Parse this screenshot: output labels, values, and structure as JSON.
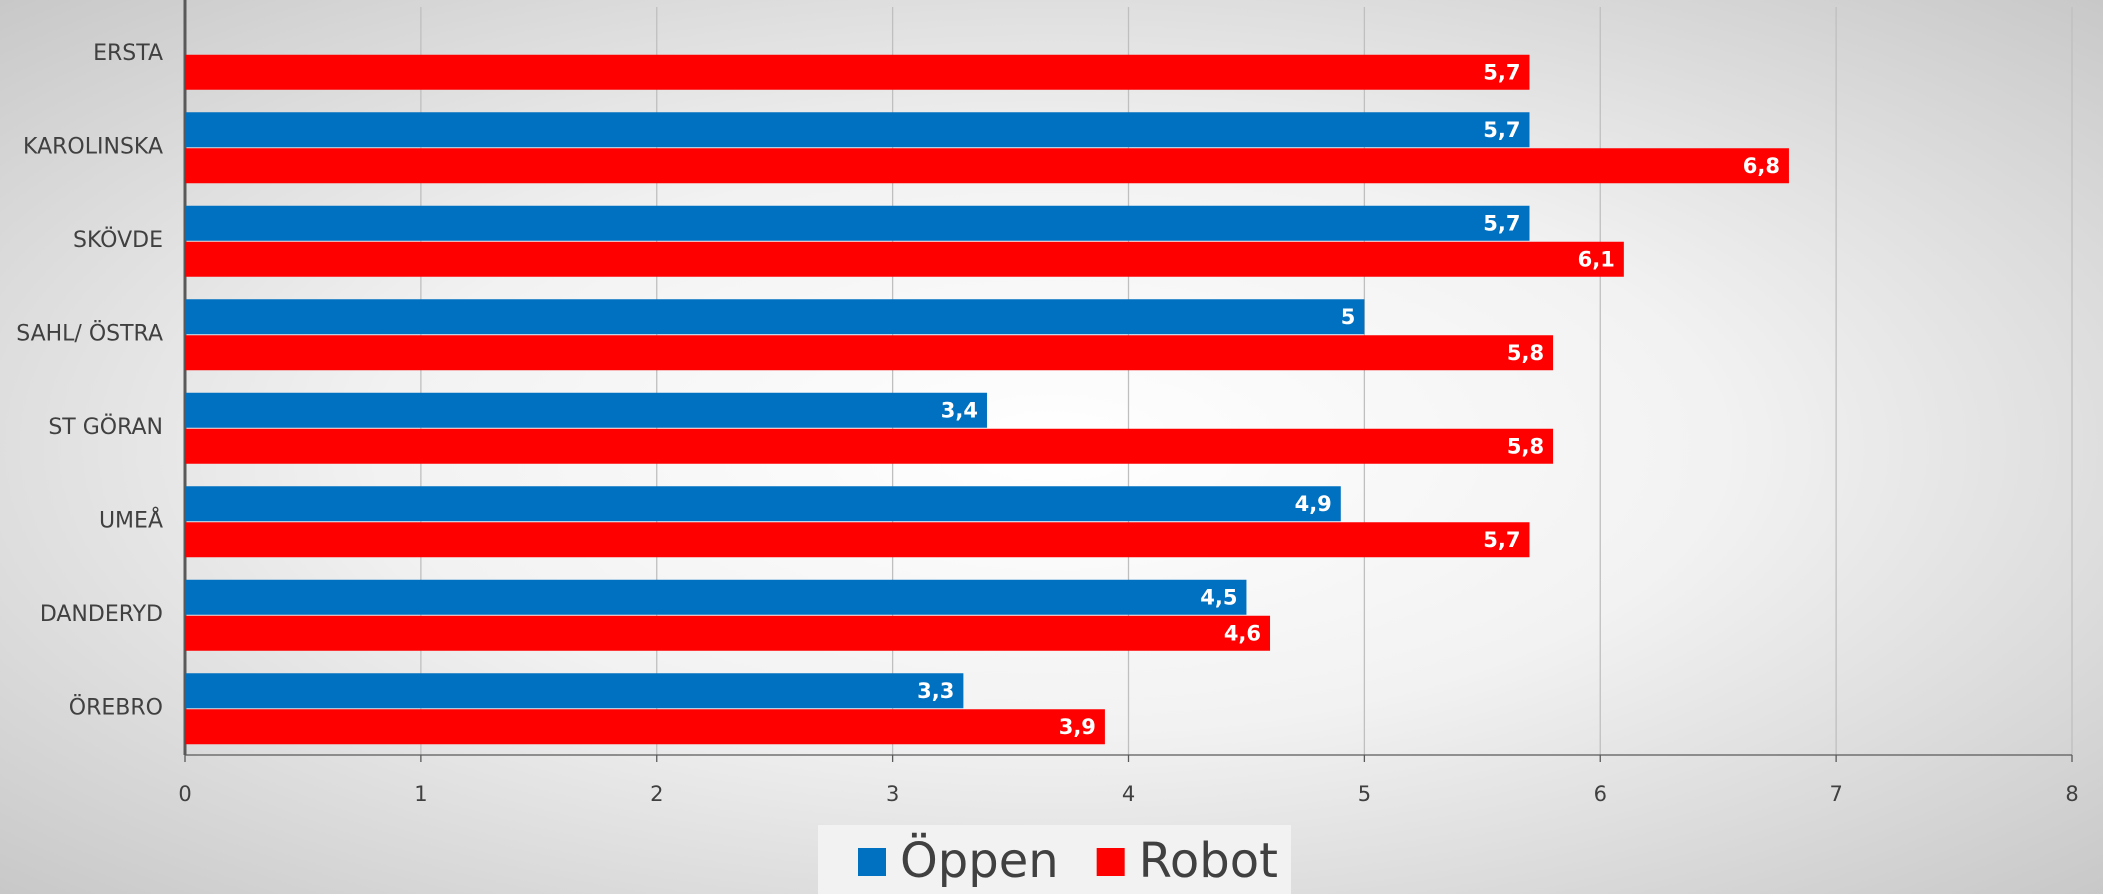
{
  "chart_data": {
    "type": "hbar",
    "categories": [
      "ERSTA",
      "KAROLINSKA",
      "SKÖVDE",
      "SAHL/ ÖSTRA",
      "ST GÖRAN",
      "UMEÅ",
      "DANDERYD",
      "ÖREBRO"
    ],
    "series": [
      {
        "name": "Öppen",
        "color": "#0070c0",
        "values": [
          null,
          5.7,
          5.7,
          5,
          3.4,
          4.9,
          4.5,
          3.3
        ],
        "value_labels": [
          null,
          "5,7",
          "5,7",
          "5",
          "3,4",
          "4,9",
          "4,5",
          "3,3"
        ]
      },
      {
        "name": "Robot",
        "color": "#ff0000",
        "values": [
          5.7,
          6.8,
          6.1,
          5.8,
          5.8,
          5.7,
          4.6,
          3.9
        ],
        "value_labels": [
          "5,7",
          "6,8",
          "6,1",
          "5,8",
          "5,8",
          "5,7",
          "4,6",
          "3,9"
        ]
      }
    ],
    "xlim": [
      0,
      8
    ],
    "xticks": [
      0,
      1,
      2,
      3,
      4,
      5,
      6,
      7,
      8
    ],
    "grid": true,
    "legend": "bottom"
  }
}
